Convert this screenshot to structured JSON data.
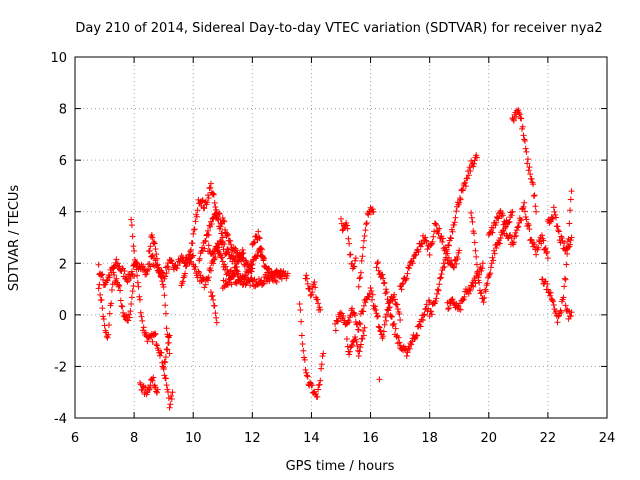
{
  "chart_data": {
    "type": "scatter",
    "title": "Day 210 of 2014, Sidereal Day-to-day VTEC variation (SDTVAR) for receiver nya2",
    "xlabel": "GPS time / hours",
    "ylabel": "SDTVAR / TECUs",
    "xlim": [
      6,
      24
    ],
    "ylim": [
      -4,
      10
    ],
    "xticks": [
      "6",
      "8",
      "10",
      "12",
      "14",
      "16",
      "18",
      "20",
      "22",
      "24"
    ],
    "yticks": [
      "-4",
      "-2",
      "0",
      "2",
      "4",
      "6",
      "8",
      "10"
    ],
    "grid": true,
    "marker": "+",
    "series_color": "#ff0000",
    "series": [
      {
        "name": "SDTVAR",
        "tracks": [
          {
            "x": [
              6.8,
              6.9,
              7.0,
              7.1,
              7.2,
              7.3,
              7.5,
              7.6,
              7.8,
              7.9,
              8.0
            ],
            "y": [
              1.2,
              0.5,
              -0.5,
              -1.0,
              0.3,
              1.5,
              1.0,
              0.2,
              -0.3,
              0.4,
              1.5
            ]
          },
          {
            "x": [
              6.8,
              6.9,
              7.0,
              7.2,
              7.4,
              7.6,
              7.8,
              8.0,
              8.2,
              8.4,
              8.6,
              8.8,
              9.0,
              9.2,
              9.4,
              9.6,
              9.8,
              10.0
            ],
            "y": [
              1.8,
              1.5,
              1.2,
              1.6,
              2.0,
              1.7,
              1.4,
              1.8,
              2.0,
              1.6,
              2.2,
              1.8,
              1.5,
              2.0,
              1.8,
              2.2,
              2.0,
              2.3
            ]
          },
          {
            "x": [
              7.9,
              8.0,
              8.1,
              8.2,
              8.3,
              8.5,
              8.7,
              8.9,
              9.0,
              9.1,
              9.2
            ],
            "y": [
              3.6,
              2.5,
              1.5,
              0.5,
              -0.5,
              -1.0,
              -0.8,
              -1.5,
              -2.0,
              -1.5,
              -0.8
            ]
          },
          {
            "x": [
              8.2,
              8.3,
              8.4,
              8.5,
              8.6,
              8.7,
              8.8
            ],
            "y": [
              -2.6,
              -2.9,
              -3.0,
              -2.8,
              -2.5,
              -2.7,
              -2.9
            ]
          },
          {
            "x": [
              8.5,
              8.6,
              8.7,
              8.8,
              8.9,
              9.0,
              9.1,
              9.2
            ],
            "y": [
              2.5,
              3.0,
              2.6,
              2.0,
              1.5,
              1.0,
              -0.5,
              -1.5
            ]
          },
          {
            "x": [
              9.0,
              9.1,
              9.2,
              9.3
            ],
            "y": [
              -2.0,
              -2.8,
              -3.5,
              -3.0
            ]
          },
          {
            "x": [
              9.6,
              9.8,
              10.0,
              10.2,
              10.4,
              10.5,
              10.6,
              10.7,
              10.8,
              10.9,
              11.0
            ],
            "y": [
              1.0,
              2.0,
              3.0,
              4.5,
              4.2,
              4.6,
              5.0,
              4.5,
              3.8,
              3.5,
              3.0
            ]
          },
          {
            "x": [
              10.2,
              10.4,
              10.6,
              10.8,
              11.0,
              11.2,
              11.4,
              11.6,
              11.8,
              12.0
            ],
            "y": [
              2.2,
              2.8,
              3.5,
              3.9,
              3.6,
              3.0,
              2.5,
              2.2,
              2.0,
              1.8
            ]
          },
          {
            "x": [
              10.0,
              10.2,
              10.4,
              10.6,
              10.8,
              11.0,
              11.2,
              11.4,
              11.6,
              11.8,
              12.0,
              12.2,
              12.4
            ],
            "y": [
              2.0,
              1.5,
              1.2,
              1.8,
              2.5,
              2.0,
              1.5,
              1.8,
              1.3,
              1.6,
              2.0,
              2.5,
              2.2
            ]
          },
          {
            "x": [
              10.6,
              10.7,
              10.8
            ],
            "y": [
              1.0,
              0.5,
              -0.3
            ]
          },
          {
            "x": [
              10.5,
              10.7,
              10.9,
              11.1,
              11.3,
              11.5,
              11.7
            ],
            "y": [
              2.6,
              2.4,
              2.8,
              2.5,
              2.2,
              2.0,
              2.4
            ]
          },
          {
            "x": [
              12.0,
              12.1,
              12.2,
              12.3,
              12.4,
              12.6,
              12.8,
              13.0,
              13.2
            ],
            "y": [
              2.6,
              3.0,
              3.1,
              2.5,
              2.0,
              1.6,
              1.7,
              1.5,
              1.6
            ]
          },
          {
            "x": [
              11.0,
              11.4,
              11.8,
              12.2,
              12.6,
              13.0
            ],
            "y": [
              1.2,
              1.4,
              1.3,
              1.2,
              1.5,
              1.4
            ]
          },
          {
            "x": [
              13.6,
              13.7,
              13.8,
              13.9,
              14.0,
              14.1,
              14.2,
              14.3,
              14.4
            ],
            "y": [
              0.5,
              -1.0,
              -2.0,
              -2.6,
              -2.8,
              -3.0,
              -3.2,
              -2.5,
              -1.5
            ]
          },
          {
            "x": [
              13.8,
              13.9,
              14.0,
              14.1,
              14.2,
              14.3
            ],
            "y": [
              1.5,
              1.0,
              0.8,
              1.2,
              0.5,
              0.2
            ]
          },
          {
            "x": [
              14.8,
              15.0,
              15.2,
              15.4,
              15.6,
              15.8,
              16.0,
              16.2,
              16.4,
              16.6,
              16.8,
              17.0
            ],
            "y": [
              -0.5,
              0.0,
              -0.3,
              0.2,
              -0.5,
              0.5,
              1.0,
              0.0,
              -0.8,
              0.3,
              0.8,
              -0.2
            ]
          },
          {
            "x": [
              15.0,
              15.1,
              15.2,
              15.3,
              15.4,
              15.5
            ],
            "y": [
              3.6,
              3.3,
              3.5,
              2.5,
              1.8,
              2.2
            ]
          },
          {
            "x": [
              15.6,
              15.7,
              15.8,
              15.9,
              16.0,
              16.1
            ],
            "y": [
              1.2,
              2.0,
              3.0,
              3.8,
              4.3,
              4.0
            ]
          },
          {
            "x": [
              15.2,
              15.3,
              15.4,
              15.5,
              15.6,
              15.7,
              15.8
            ],
            "y": [
              -1.0,
              -1.5,
              -1.2,
              -0.8,
              -1.6,
              -1.0,
              -0.5
            ]
          },
          {
            "x": [
              16.2,
              16.4,
              16.6,
              16.8,
              17.0,
              17.2,
              17.4,
              17.6,
              17.8,
              18.0
            ],
            "y": [
              2.0,
              1.5,
              0.5,
              -0.5,
              -1.2,
              -1.5,
              -1.0,
              -0.6,
              0.0,
              0.5
            ]
          },
          {
            "x": [
              16.3
            ],
            "y": [
              -2.5
            ]
          },
          {
            "x": [
              17.0,
              17.2,
              17.4,
              17.6,
              17.8,
              18.0,
              18.2,
              18.4,
              18.6,
              18.8,
              19.0
            ],
            "y": [
              1.0,
              1.5,
              2.0,
              2.5,
              3.0,
              2.5,
              3.5,
              3.0,
              2.2,
              1.8,
              2.5
            ]
          },
          {
            "x": [
              18.0,
              18.2,
              18.4,
              18.6,
              18.8,
              19.0,
              19.2,
              19.4,
              19.6
            ],
            "y": [
              0.0,
              0.5,
              1.5,
              2.5,
              3.5,
              4.5,
              5.0,
              5.8,
              6.1
            ]
          },
          {
            "x": [
              19.4,
              19.5,
              19.6,
              19.7,
              19.8,
              20.0,
              20.2,
              20.4,
              20.6,
              20.8
            ],
            "y": [
              4.0,
              3.0,
              2.0,
              1.0,
              0.5,
              1.5,
              2.5,
              3.0,
              3.5,
              4.0
            ]
          },
          {
            "x": [
              18.6,
              18.8,
              19.0,
              19.2,
              19.4,
              19.6,
              19.8
            ],
            "y": [
              0.3,
              0.5,
              0.2,
              0.8,
              1.0,
              1.5,
              2.0
            ]
          },
          {
            "x": [
              20.8,
              20.9,
              21.0,
              21.1,
              21.2,
              21.3,
              21.4,
              21.5,
              21.6
            ],
            "y": [
              7.5,
              7.8,
              8.0,
              7.5,
              6.8,
              6.0,
              5.5,
              5.0,
              4.0
            ]
          },
          {
            "x": [
              20.0,
              20.2,
              20.4,
              20.6,
              20.8,
              21.0,
              21.2,
              21.4,
              21.6,
              21.8,
              22.0
            ],
            "y": [
              3.0,
              3.5,
              4.0,
              3.2,
              2.8,
              3.5,
              4.2,
              3.0,
              2.5,
              3.0,
              2.2
            ]
          },
          {
            "x": [
              21.8,
              22.0,
              22.2,
              22.3,
              22.4,
              22.5,
              22.6,
              22.7,
              22.8
            ],
            "y": [
              1.5,
              1.0,
              0.5,
              -0.2,
              0.0,
              0.5,
              1.5,
              3.0,
              4.8
            ]
          },
          {
            "x": [
              22.0,
              22.2,
              22.4,
              22.6,
              22.8
            ],
            "y": [
              3.5,
              4.0,
              3.0,
              2.5,
              3.0
            ]
          },
          {
            "x": [
              22.6,
              22.7,
              22.8
            ],
            "y": [
              0.3,
              0.0,
              0.1
            ]
          }
        ]
      }
    ]
  }
}
